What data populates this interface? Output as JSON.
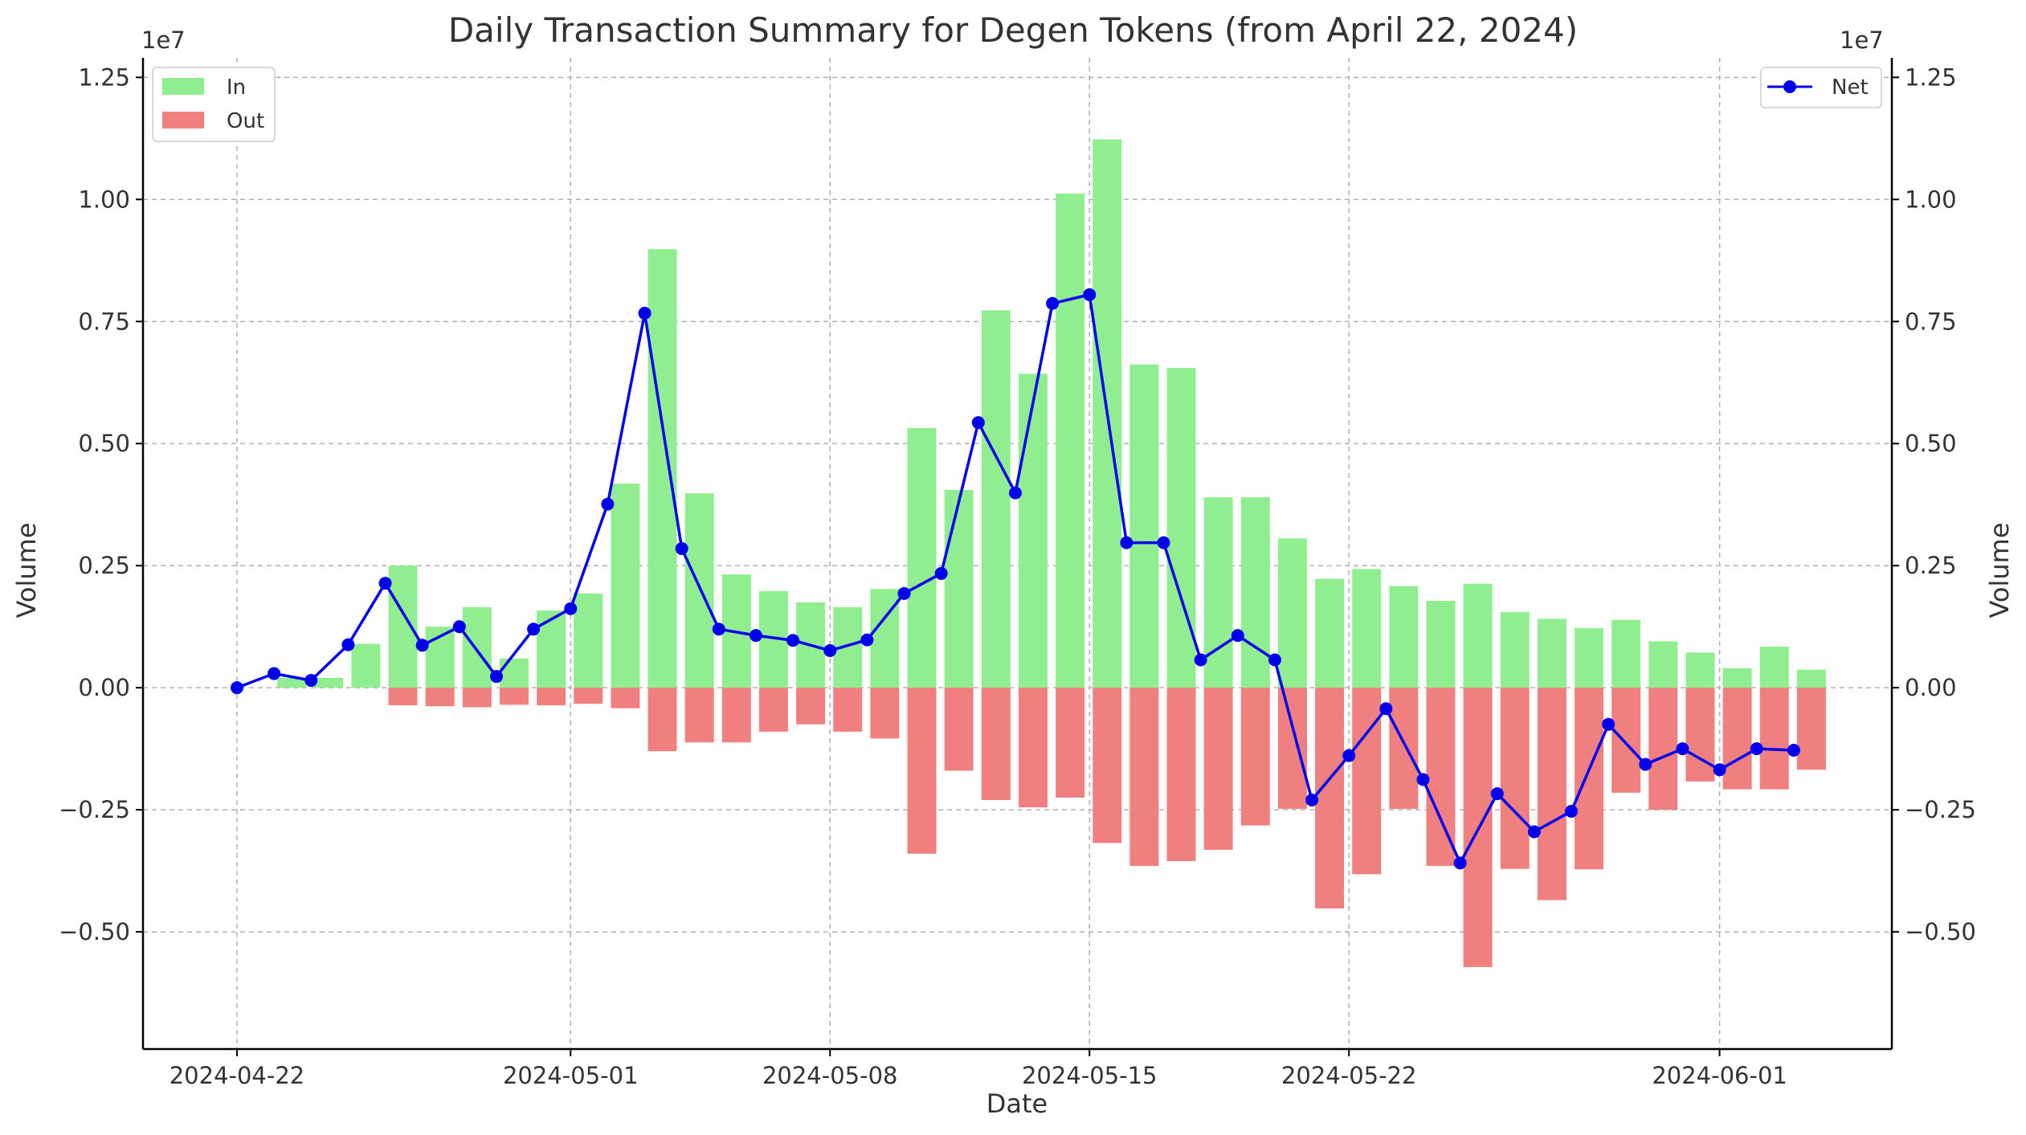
{
  "chart_data": {
    "type": "bar",
    "title": "Daily Transaction Summary for Degen Tokens (from April 22, 2024)",
    "xlabel": "Date",
    "ylabel_left": "Volume",
    "ylabel_right": "Volume",
    "y_exponent_left": "1e7",
    "y_exponent_right": "1e7",
    "ylim": [
      -0.74,
      1.29
    ],
    "y_scale_multiplier": 10000000,
    "yticks": [
      1.25,
      1.0,
      0.75,
      0.5,
      0.25,
      0.0,
      -0.25,
      -0.5
    ],
    "ytick_labels": [
      "1.25",
      "1.00",
      "0.75",
      "0.50",
      "0.25",
      "0.00",
      "−0.25",
      "−0.50"
    ],
    "xtick_labels": [
      {
        "label": "2024-04-22",
        "index": 0
      },
      {
        "label": "2024-05-01",
        "index": 9
      },
      {
        "label": "2024-05-08",
        "index": 16
      },
      {
        "label": "2024-05-15",
        "index": 23
      },
      {
        "label": "2024-05-22",
        "index": 30
      },
      {
        "label": "2024-06-01",
        "index": 40
      }
    ],
    "x_dates": [
      "2024-04-22",
      "2024-04-23",
      "2024-04-24",
      "2024-04-25",
      "2024-04-26",
      "2024-04-27",
      "2024-04-28",
      "2024-04-29",
      "2024-04-30",
      "2024-05-01",
      "2024-05-02",
      "2024-05-03",
      "2024-05-04",
      "2024-05-05",
      "2024-05-06",
      "2024-05-07",
      "2024-05-08",
      "2024-05-09",
      "2024-05-10",
      "2024-05-11",
      "2024-05-12",
      "2024-05-13",
      "2024-05-14",
      "2024-05-15",
      "2024-05-16",
      "2024-05-17",
      "2024-05-18",
      "2024-05-19",
      "2024-05-20",
      "2024-05-21",
      "2024-05-22",
      "2024-05-23",
      "2024-05-24",
      "2024-05-25",
      "2024-05-26",
      "2024-05-27",
      "2024-05-28",
      "2024-05-29",
      "2024-05-30",
      "2024-05-31",
      "2024-06-01",
      "2024-06-02",
      "2024-06-03"
    ],
    "series": [
      {
        "name": "In",
        "kind": "bar",
        "color": "#90ee90",
        "values": [
          0.0,
          0.02,
          0.02,
          0.09,
          0.25,
          0.125,
          0.165,
          0.06,
          0.158,
          0.193,
          0.418,
          0.898,
          0.398,
          0.232,
          0.198,
          0.175,
          0.165,
          0.202,
          0.532,
          0.405,
          0.773,
          0.643,
          1.012,
          1.123,
          0.662,
          0.655,
          0.39,
          0.39,
          0.306,
          0.223,
          0.243,
          0.208,
          0.178,
          0.213,
          0.155,
          0.141,
          0.122,
          0.139,
          0.095,
          0.072,
          0.04,
          0.084,
          0.037
        ]
      },
      {
        "name": "Out",
        "kind": "bar",
        "color": "#f08080",
        "values": [
          0.0,
          0.0,
          0.0,
          0.0,
          -0.036,
          -0.038,
          -0.04,
          -0.035,
          -0.036,
          -0.033,
          -0.042,
          -0.13,
          -0.112,
          -0.112,
          -0.09,
          -0.075,
          -0.09,
          -0.104,
          -0.34,
          -0.17,
          -0.23,
          -0.245,
          -0.225,
          -0.318,
          -0.365,
          -0.355,
          -0.332,
          -0.282,
          -0.248,
          -0.452,
          -0.382,
          -0.248,
          -0.365,
          -0.572,
          -0.371,
          -0.435,
          -0.372,
          -0.215,
          -0.25,
          -0.192,
          -0.208,
          -0.208,
          -0.168
        ]
      },
      {
        "name": "Net",
        "kind": "line",
        "color": "#0000ee",
        "values": [
          0.0,
          0.029,
          0.015,
          0.088,
          0.214,
          0.087,
          0.125,
          0.023,
          0.12,
          0.162,
          0.376,
          0.767,
          0.285,
          0.12,
          0.107,
          0.097,
          0.076,
          0.098,
          0.193,
          0.234,
          0.543,
          0.399,
          0.787,
          0.805,
          0.297,
          0.297,
          0.057,
          0.107,
          0.057,
          -0.23,
          -0.139,
          -0.043,
          -0.188,
          -0.359,
          -0.217,
          -0.295,
          -0.253,
          -0.075,
          -0.157,
          -0.125,
          -0.168,
          -0.125,
          -0.128
        ]
      }
    ],
    "legend_left": [
      "In",
      "Out"
    ],
    "legend_right": [
      "Net"
    ],
    "legend_left_placement": "top-left",
    "legend_right_placement": "top-right",
    "grid": true
  }
}
